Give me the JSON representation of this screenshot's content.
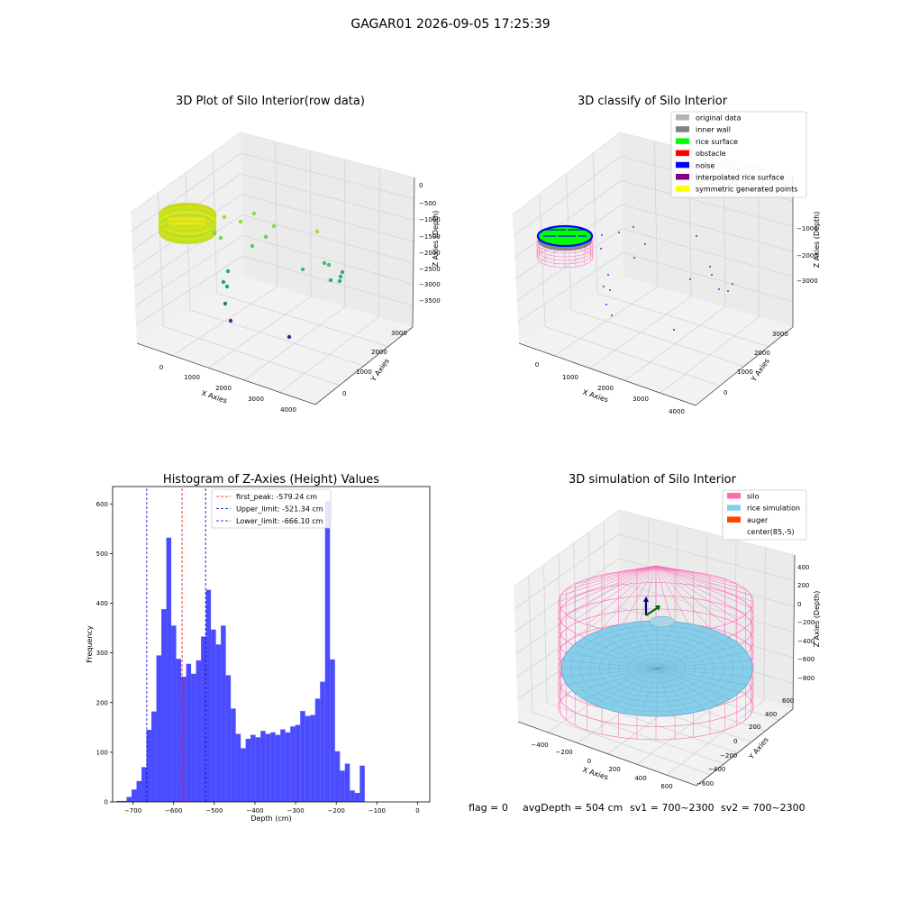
{
  "figure": {
    "suptitle": "GAGAR01 2026-09-05 17:25:39",
    "status_line": {
      "flag": "flag = 0",
      "avg_depth": "avgDepth = 504 cm",
      "sv1": "sv1 = 700~2300",
      "sv2": "sv2 = 700~2300"
    }
  },
  "chart_data": [
    {
      "type": "scatter",
      "projection": "3d",
      "title": "3D Plot of Silo Interior(row data)",
      "xlabel": "X Axies",
      "ylabel": "Y Axies",
      "zlabel": "Z Axies (Depth)",
      "x_ticks": [
        "0",
        "1000",
        "2000",
        "3000",
        "4000"
      ],
      "y_ticks": [
        "0",
        "1000",
        "2000",
        "3000"
      ],
      "z_ticks": [
        "0",
        "−500",
        "−1000",
        "−1500",
        "−2000",
        "−2500",
        "−3000",
        "−3500"
      ],
      "colormap": "viridis (by depth)",
      "colors": {
        "surface": "#c8e41e",
        "mid": "#3fbc73",
        "deep": "#2a788e",
        "deepest": "#482878"
      }
    },
    {
      "type": "scatter",
      "projection": "3d",
      "title": "3D classify of Silo Interior",
      "xlabel": "X Axies",
      "ylabel": "Y Axies",
      "zlabel": "Z Axies (Depth)",
      "x_ticks": [
        "0",
        "1000",
        "2000",
        "3000",
        "4000"
      ],
      "y_ticks": [
        "0",
        "1000",
        "2000",
        "3000"
      ],
      "z_ticks": [
        "−1000",
        "−2000",
        "−3000"
      ],
      "legend_position": "top-right",
      "legend": [
        {
          "label": "original data",
          "color": "#b4b4b4"
        },
        {
          "label": "inner wall",
          "color": "#808080"
        },
        {
          "label": "rice surface",
          "color": "#00ff00"
        },
        {
          "label": "obstacle",
          "color": "#ff0000"
        },
        {
          "label": "noise",
          "color": "#0000ff"
        },
        {
          "label": "interpolated rice surface",
          "color": "#800080"
        },
        {
          "label": "symmetric generated points",
          "color": "#ffff00"
        }
      ]
    },
    {
      "type": "bar",
      "title": "Histogram of Z-Axies (Height) Values",
      "xlabel": "Depth (cm)",
      "ylabel": "Frequency",
      "bar_color": "#0000ff",
      "bar_alpha": 0.7,
      "xlim": [
        -750,
        30
      ],
      "ylim": [
        0,
        635
      ],
      "x_ticks": [
        -700,
        -600,
        -500,
        -400,
        -300,
        -200,
        -100,
        0
      ],
      "x_tick_labels": [
        "−700",
        "−600",
        "−500",
        "−400",
        "−300",
        "−200",
        "−100",
        "0"
      ],
      "y_ticks": [
        0,
        100,
        200,
        300,
        400,
        500,
        600
      ],
      "y_tick_labels": [
        "0",
        "100",
        "200",
        "300",
        "400",
        "500",
        "600"
      ],
      "bin_start": -740,
      "bin_width": 12.2,
      "values": [
        2,
        2,
        10,
        25,
        42,
        70,
        145,
        182,
        295,
        388,
        532,
        355,
        288,
        252,
        278,
        258,
        285,
        333,
        427,
        347,
        317,
        355,
        255,
        188,
        137,
        108,
        127,
        135,
        130,
        143,
        137,
        140,
        135,
        146,
        140,
        152,
        155,
        183,
        173,
        175,
        208,
        242,
        606,
        287,
        102,
        63,
        77,
        23,
        18,
        73
      ],
      "vlines": [
        {
          "x": -579.24,
          "label": "first_peak: -579.24 cm",
          "color": "#ff0000"
        },
        {
          "x": -521.34,
          "label": "Upper_limit: -521.34 cm",
          "color": "#00008b"
        },
        {
          "x": -666.1,
          "label": "Lower_limit: -666.10 cm",
          "color": "#0000cd"
        }
      ],
      "legend_position": "upper center"
    },
    {
      "type": "surface",
      "projection": "3d",
      "title": "3D simulation of Silo Interior",
      "xlabel": "X Axies",
      "ylabel": "Y Axies",
      "zlabel": "Z Axies (Depth)",
      "x_ticks": [
        "−400",
        "−200",
        "0",
        "200",
        "400",
        "600"
      ],
      "y_ticks": [
        "−600",
        "−400",
        "−200",
        "0",
        "200",
        "400",
        "600"
      ],
      "z_ticks": [
        "400",
        "200",
        "0",
        "−200",
        "−400",
        "−600",
        "−800"
      ],
      "legend_position": "top-right",
      "legend": [
        {
          "label": "silo",
          "color": "#ff69b4"
        },
        {
          "label": "rice simulation",
          "color": "#87ceeb"
        },
        {
          "label": "auger",
          "color": "#ff4500"
        },
        {
          "label": "center(85,-5)",
          "color": "#ffffff"
        }
      ]
    }
  ]
}
